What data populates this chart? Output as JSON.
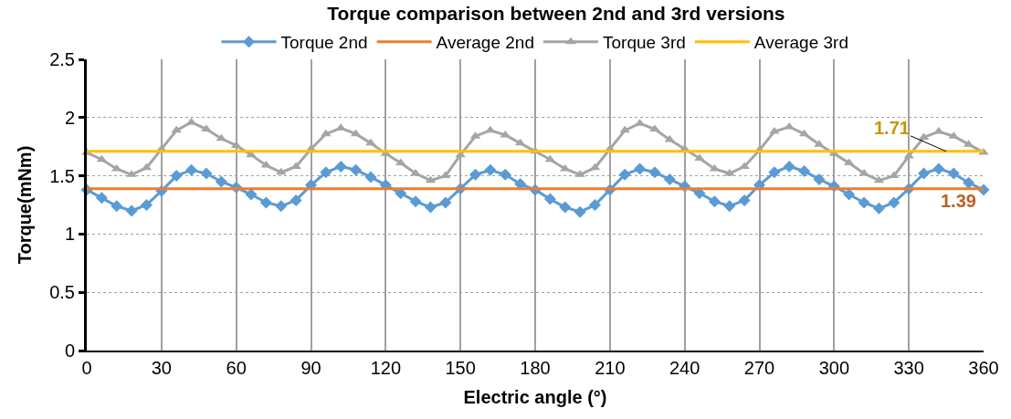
{
  "chart_data": {
    "type": "line",
    "title": "Torque comparison between 2nd and 3rd versions",
    "xlabel": "Electric angle (°)",
    "ylabel": "Torque(mNm)",
    "x": [
      0,
      6,
      12,
      18,
      24,
      30,
      36,
      42,
      48,
      54,
      60,
      66,
      72,
      78,
      84,
      90,
      96,
      102,
      108,
      114,
      120,
      126,
      132,
      138,
      144,
      150,
      156,
      162,
      168,
      174,
      180,
      186,
      192,
      198,
      204,
      210,
      216,
      222,
      228,
      234,
      240,
      246,
      252,
      258,
      264,
      270,
      276,
      282,
      288,
      294,
      300,
      306,
      312,
      318,
      324,
      330,
      336,
      342,
      348,
      354,
      360
    ],
    "series": [
      {
        "name": "Torque 2nd",
        "color": "#5b9bd5",
        "marker": "diamond",
        "values": [
          1.38,
          1.31,
          1.24,
          1.2,
          1.25,
          1.37,
          1.5,
          1.55,
          1.52,
          1.45,
          1.4,
          1.34,
          1.27,
          1.24,
          1.29,
          1.42,
          1.53,
          1.58,
          1.55,
          1.49,
          1.42,
          1.35,
          1.28,
          1.23,
          1.27,
          1.39,
          1.51,
          1.55,
          1.51,
          1.43,
          1.38,
          1.3,
          1.23,
          1.19,
          1.25,
          1.38,
          1.51,
          1.56,
          1.53,
          1.47,
          1.41,
          1.35,
          1.28,
          1.24,
          1.29,
          1.42,
          1.53,
          1.58,
          1.54,
          1.47,
          1.41,
          1.34,
          1.27,
          1.22,
          1.27,
          1.39,
          1.52,
          1.56,
          1.52,
          1.44,
          1.38
        ]
      },
      {
        "name": "Average 2nd",
        "color": "#ed7d31",
        "marker": "none",
        "values": [
          1.39,
          1.39,
          1.39,
          1.39,
          1.39,
          1.39,
          1.39,
          1.39,
          1.39,
          1.39,
          1.39,
          1.39,
          1.39,
          1.39,
          1.39,
          1.39,
          1.39,
          1.39,
          1.39,
          1.39,
          1.39,
          1.39,
          1.39,
          1.39,
          1.39,
          1.39,
          1.39,
          1.39,
          1.39,
          1.39,
          1.39,
          1.39,
          1.39,
          1.39,
          1.39,
          1.39,
          1.39,
          1.39,
          1.39,
          1.39,
          1.39,
          1.39,
          1.39,
          1.39,
          1.39,
          1.39,
          1.39,
          1.39,
          1.39,
          1.39,
          1.39,
          1.39,
          1.39,
          1.39,
          1.39,
          1.39,
          1.39,
          1.39,
          1.39,
          1.39,
          1.39
        ]
      },
      {
        "name": "Torque 3rd",
        "color": "#a5a5a5",
        "marker": "triangle",
        "values": [
          1.7,
          1.64,
          1.56,
          1.51,
          1.57,
          1.73,
          1.89,
          1.96,
          1.9,
          1.82,
          1.76,
          1.68,
          1.59,
          1.53,
          1.58,
          1.73,
          1.86,
          1.91,
          1.86,
          1.78,
          1.69,
          1.61,
          1.52,
          1.46,
          1.5,
          1.68,
          1.84,
          1.89,
          1.85,
          1.78,
          1.71,
          1.64,
          1.56,
          1.51,
          1.57,
          1.73,
          1.89,
          1.95,
          1.9,
          1.81,
          1.73,
          1.65,
          1.56,
          1.52,
          1.58,
          1.72,
          1.88,
          1.92,
          1.86,
          1.77,
          1.69,
          1.61,
          1.52,
          1.46,
          1.5,
          1.67,
          1.83,
          1.88,
          1.84,
          1.77,
          1.7
        ]
      },
      {
        "name": "Average 3rd",
        "color": "#ffc000",
        "marker": "none",
        "values": [
          1.71,
          1.71,
          1.71,
          1.71,
          1.71,
          1.71,
          1.71,
          1.71,
          1.71,
          1.71,
          1.71,
          1.71,
          1.71,
          1.71,
          1.71,
          1.71,
          1.71,
          1.71,
          1.71,
          1.71,
          1.71,
          1.71,
          1.71,
          1.71,
          1.71,
          1.71,
          1.71,
          1.71,
          1.71,
          1.71,
          1.71,
          1.71,
          1.71,
          1.71,
          1.71,
          1.71,
          1.71,
          1.71,
          1.71,
          1.71,
          1.71,
          1.71,
          1.71,
          1.71,
          1.71,
          1.71,
          1.71,
          1.71,
          1.71,
          1.71,
          1.71,
          1.71,
          1.71,
          1.71,
          1.71,
          1.71,
          1.71,
          1.71,
          1.71,
          1.71,
          1.71
        ]
      }
    ],
    "annotations": [
      {
        "text": "1.71",
        "x": 345,
        "y": 1.71
      },
      {
        "text": "1.39",
        "x": 350,
        "y": 1.39
      }
    ],
    "xlim": [
      0,
      360
    ],
    "xticks": [
      0,
      30,
      60,
      90,
      120,
      150,
      180,
      210,
      240,
      270,
      300,
      330,
      360
    ],
    "ylim": [
      0,
      2.5
    ],
    "yticks": [
      0,
      0.5,
      1,
      1.5,
      2,
      2.5
    ],
    "grid": true,
    "legend": "top"
  }
}
